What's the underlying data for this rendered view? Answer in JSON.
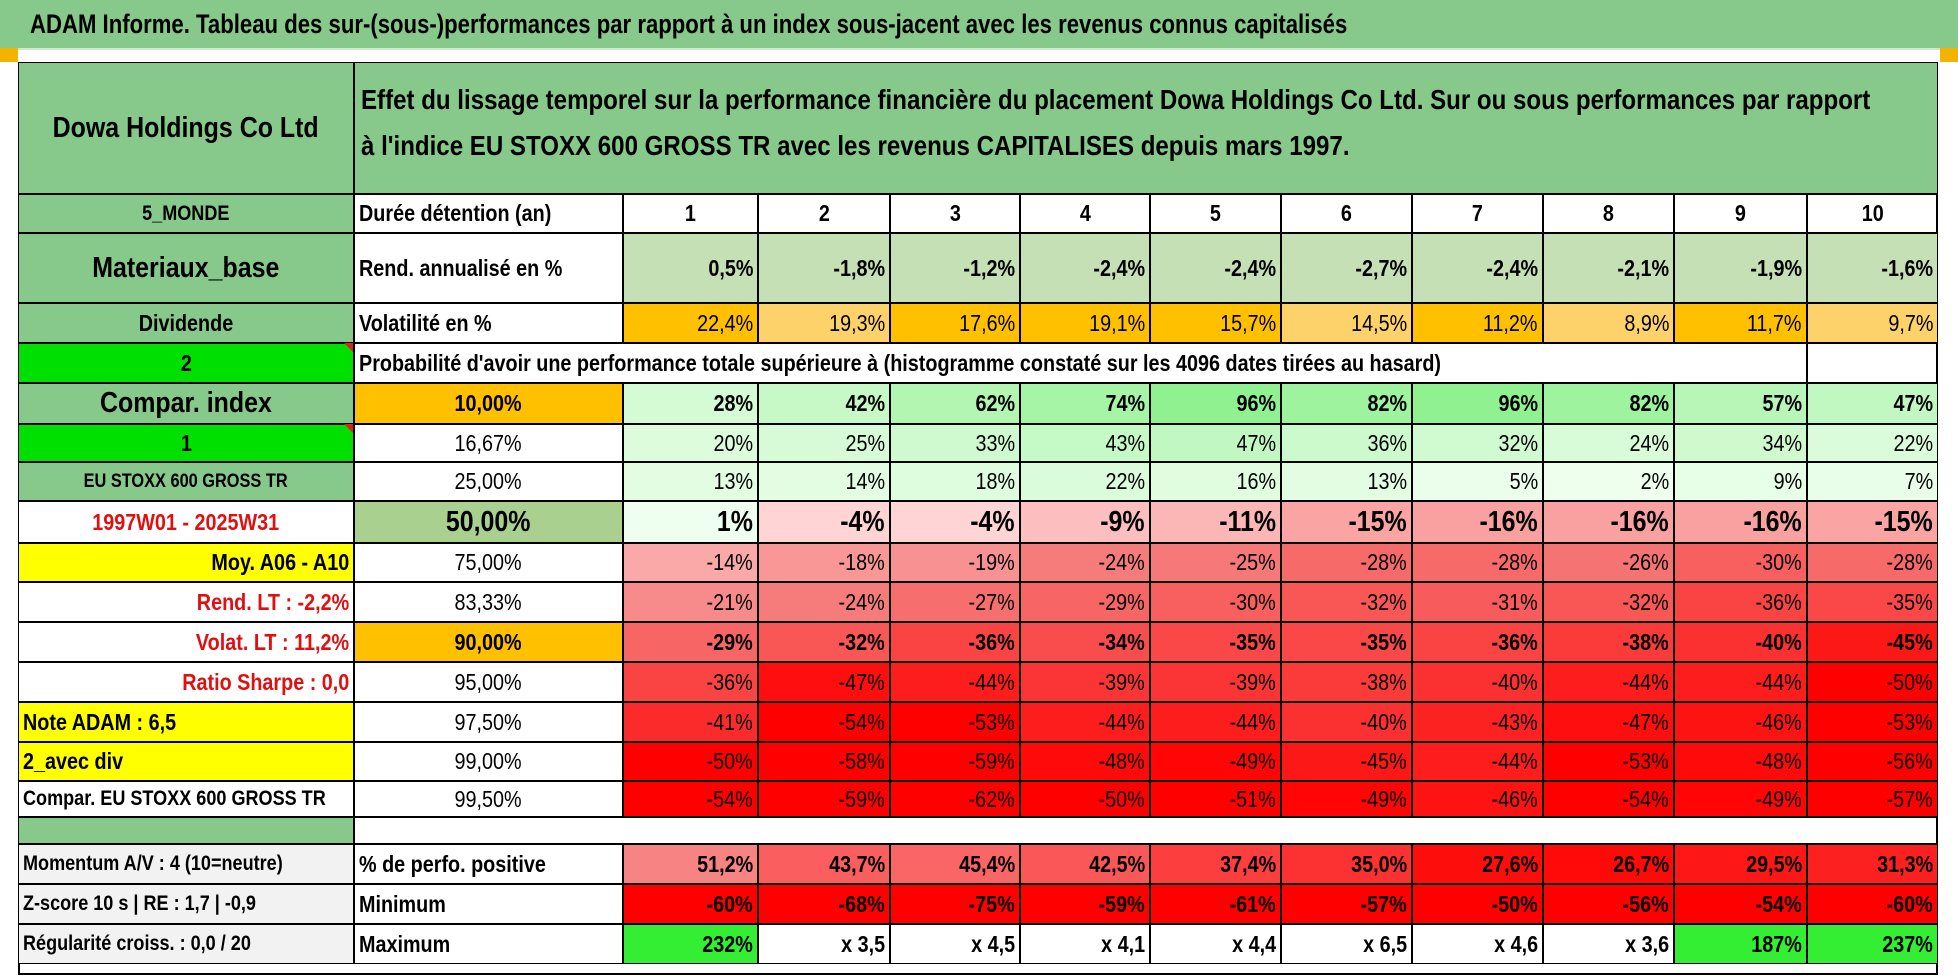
{
  "report_title": "ADAM Informe. Tableau des sur-(sous-)performances par rapport à un index sous-jacent avec les revenus connus capitalisés",
  "company": "Dowa Holdings Co Ltd",
  "description": [
    "Effet du lissage temporel sur la performance financière du placement Dowa Holdings Co Ltd. Sur ou sous performances par rapport",
    "à l'indice EU STOXX 600 GROSS TR avec les revenus CAPITALISES depuis mars 1997."
  ],
  "left_labels": {
    "region": "5_MONDE",
    "sector": "Materiaux_base",
    "dividend": "Dividende",
    "input1": "2",
    "compar_index": "Compar. index",
    "input2": "1",
    "index_name": "EU STOXX 600 GROSS TR",
    "period": "1997W01 - 2025W31",
    "moy": "Moy. A06 - A10",
    "rend_lt": "Rend. LT :    -2,2%",
    "volat_lt": "Volat. LT :    11,2%",
    "sharpe": "Ratio Sharpe :     0,0",
    "note": "Note ADAM : 6,5",
    "avec_div": "2_avec div",
    "compar_full": "Compar. EU STOXX 600 GROSS TR",
    "momentum": "Momentum A/V : 4 (10=neutre)",
    "zscore": "Z-score 10 s | RE : 1,7 | -0,9",
    "regularite": "Régularité croiss. : 0,0 / 20"
  },
  "row_labels": {
    "duree": "Durée détention (an)",
    "rend": "Rend. annualisé en %",
    "volat": "Volatilité en %",
    "proba": "Probabilité d'avoir une performance totale supérieure à (histogramme constaté sur les 4096 dates tirées au hasard)",
    "pct_positive": "% de perfo. positive",
    "minimum": "Minimum",
    "maximum": "Maximum"
  },
  "years": [
    "1",
    "2",
    "3",
    "4",
    "5",
    "6",
    "7",
    "8",
    "9",
    "10"
  ],
  "rend": [
    "0,5%",
    "-1,8%",
    "-1,2%",
    "-2,4%",
    "-2,4%",
    "-2,7%",
    "-2,4%",
    "-2,1%",
    "-1,9%",
    "-1,6%"
  ],
  "volat": [
    "22,4%",
    "19,3%",
    "17,6%",
    "19,1%",
    "15,7%",
    "14,5%",
    "11,2%",
    "8,9%",
    "11,7%",
    "9,7%"
  ],
  "quantile_rows": [
    {
      "label": "10,00%",
      "values": [
        "28%",
        "42%",
        "62%",
        "74%",
        "96%",
        "82%",
        "96%",
        "82%",
        "57%",
        "47%"
      ]
    },
    {
      "label": "16,67%",
      "values": [
        "20%",
        "25%",
        "33%",
        "43%",
        "47%",
        "36%",
        "32%",
        "24%",
        "34%",
        "22%"
      ]
    },
    {
      "label": "25,00%",
      "values": [
        "13%",
        "14%",
        "18%",
        "22%",
        "16%",
        "13%",
        "5%",
        "2%",
        "9%",
        "7%"
      ]
    },
    {
      "label": "50,00%",
      "values": [
        "1%",
        "-4%",
        "-4%",
        "-9%",
        "-11%",
        "-15%",
        "-16%",
        "-16%",
        "-16%",
        "-15%"
      ]
    },
    {
      "label": "75,00%",
      "values": [
        "-14%",
        "-18%",
        "-19%",
        "-24%",
        "-25%",
        "-28%",
        "-28%",
        "-26%",
        "-30%",
        "-28%"
      ]
    },
    {
      "label": "83,33%",
      "values": [
        "-21%",
        "-24%",
        "-27%",
        "-29%",
        "-30%",
        "-32%",
        "-31%",
        "-32%",
        "-36%",
        "-35%"
      ]
    },
    {
      "label": "90,00%",
      "values": [
        "-29%",
        "-32%",
        "-36%",
        "-34%",
        "-35%",
        "-35%",
        "-36%",
        "-38%",
        "-40%",
        "-45%"
      ]
    },
    {
      "label": "95,00%",
      "values": [
        "-36%",
        "-47%",
        "-44%",
        "-39%",
        "-39%",
        "-38%",
        "-40%",
        "-44%",
        "-44%",
        "-50%"
      ]
    },
    {
      "label": "97,50%",
      "values": [
        "-41%",
        "-54%",
        "-53%",
        "-44%",
        "-44%",
        "-40%",
        "-43%",
        "-47%",
        "-46%",
        "-53%"
      ]
    },
    {
      "label": "99,00%",
      "values": [
        "-50%",
        "-58%",
        "-59%",
        "-48%",
        "-49%",
        "-45%",
        "-44%",
        "-53%",
        "-48%",
        "-56%"
      ]
    },
    {
      "label": "99,50%",
      "values": [
        "-54%",
        "-59%",
        "-62%",
        "-50%",
        "-51%",
        "-49%",
        "-46%",
        "-54%",
        "-49%",
        "-57%"
      ]
    }
  ],
  "pct_positive": [
    "51,2%",
    "43,7%",
    "45,4%",
    "42,5%",
    "37,4%",
    "35,0%",
    "27,6%",
    "26,7%",
    "29,5%",
    "31,3%"
  ],
  "minimum": [
    "-60%",
    "-68%",
    "-75%",
    "-59%",
    "-61%",
    "-57%",
    "-50%",
    "-56%",
    "-54%",
    "-60%"
  ],
  "maximum": [
    "232%",
    "x 3,5",
    "x 4,5",
    "x 4,1",
    "x 4,4",
    "x 6,5",
    "x 4,6",
    "x 3,6",
    "187%",
    "237%"
  ],
  "colors": {
    "title_green": "#86c98a",
    "light_green": "#c5e0b4",
    "bright_green": "#00e000",
    "orange": "#ffc000",
    "yellow": "#ffff00",
    "red": "#ff0000"
  }
}
